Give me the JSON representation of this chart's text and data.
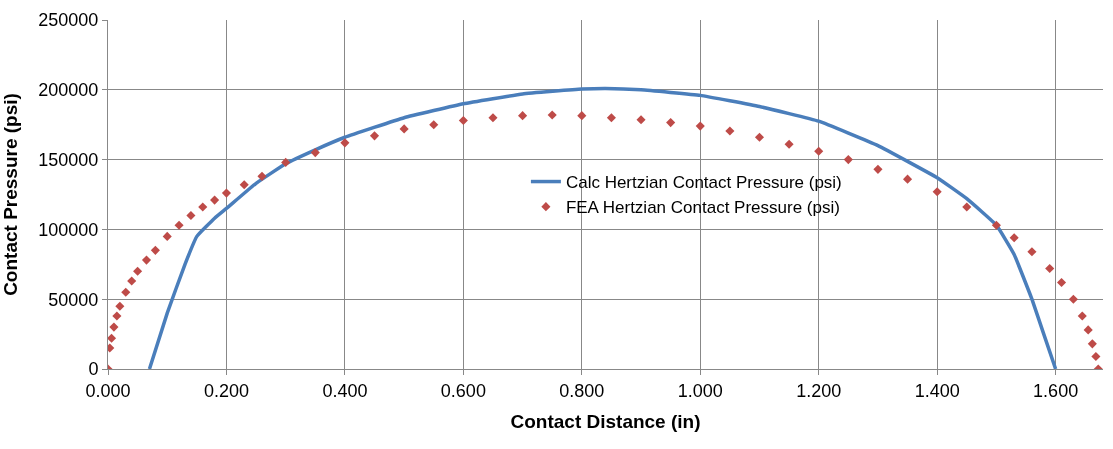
{
  "chart_data": {
    "type": "line",
    "xlabel": "Contact Distance (in)",
    "ylabel": "Contact Pressure (psi)",
    "xlim": [
      0,
      1.68
    ],
    "ylim": [
      0,
      250000
    ],
    "xticks": [
      {
        "value": 0,
        "label": "0.000"
      },
      {
        "value": 0.2,
        "label": "0.200"
      },
      {
        "value": 0.4,
        "label": "0.400"
      },
      {
        "value": 0.6,
        "label": "0.600"
      },
      {
        "value": 0.8,
        "label": "0.800"
      },
      {
        "value": 1.0,
        "label": "1.000"
      },
      {
        "value": 1.2,
        "label": "1.200"
      },
      {
        "value": 1.4,
        "label": "1.400"
      },
      {
        "value": 1.6,
        "label": "1.600"
      }
    ],
    "yticks": [
      0,
      50000,
      100000,
      150000,
      200000,
      250000
    ],
    "grid": true,
    "legend": "center",
    "series": [
      {
        "name": "Calc Hertzian Contact Pressure (psi)",
        "marker": "none",
        "color": "#4a7ebb",
        "x": [
          0.07,
          0.1,
          0.13,
          0.15,
          0.18,
          0.2,
          0.25,
          0.3,
          0.35,
          0.4,
          0.5,
          0.6,
          0.7,
          0.8,
          0.84,
          0.9,
          1.0,
          1.1,
          1.2,
          1.3,
          1.4,
          1.45,
          1.5,
          1.53,
          1.56,
          1.58,
          1.6
        ],
        "values": [
          0,
          40000,
          75000,
          95000,
          108000,
          115000,
          133000,
          147000,
          157000,
          166000,
          180000,
          190000,
          197000,
          200500,
          201000,
          200000,
          196000,
          188000,
          177500,
          160000,
          137000,
          122000,
          103000,
          82000,
          50000,
          25000,
          0
        ]
      },
      {
        "name": "FEA Hertzian Contact Pressure (psi)",
        "type": "scatter",
        "marker": "diamond",
        "color": "#be4b48",
        "x": [
          0.0,
          0.003,
          0.006,
          0.01,
          0.015,
          0.02,
          0.03,
          0.04,
          0.05,
          0.065,
          0.08,
          0.1,
          0.12,
          0.14,
          0.16,
          0.18,
          0.2,
          0.23,
          0.26,
          0.3,
          0.35,
          0.4,
          0.45,
          0.5,
          0.55,
          0.6,
          0.65,
          0.7,
          0.75,
          0.8,
          0.85,
          0.9,
          0.95,
          1.0,
          1.05,
          1.1,
          1.15,
          1.2,
          1.25,
          1.3,
          1.35,
          1.4,
          1.45,
          1.5,
          1.53,
          1.56,
          1.59,
          1.61,
          1.63,
          1.645,
          1.655,
          1.662,
          1.668,
          1.672
        ],
        "values": [
          0,
          15000,
          22000,
          30000,
          38000,
          45000,
          55000,
          63000,
          70000,
          78000,
          85000,
          95000,
          103000,
          110000,
          116000,
          121000,
          126000,
          132000,
          138000,
          148000,
          155000,
          162000,
          167000,
          172000,
          175000,
          178000,
          180000,
          181500,
          182000,
          181500,
          180000,
          178500,
          176500,
          174000,
          170500,
          166000,
          161000,
          156000,
          150000,
          143000,
          136000,
          127000,
          116000,
          103000,
          94000,
          84000,
          72000,
          62000,
          50000,
          38000,
          28000,
          18000,
          9000,
          0
        ]
      }
    ]
  }
}
